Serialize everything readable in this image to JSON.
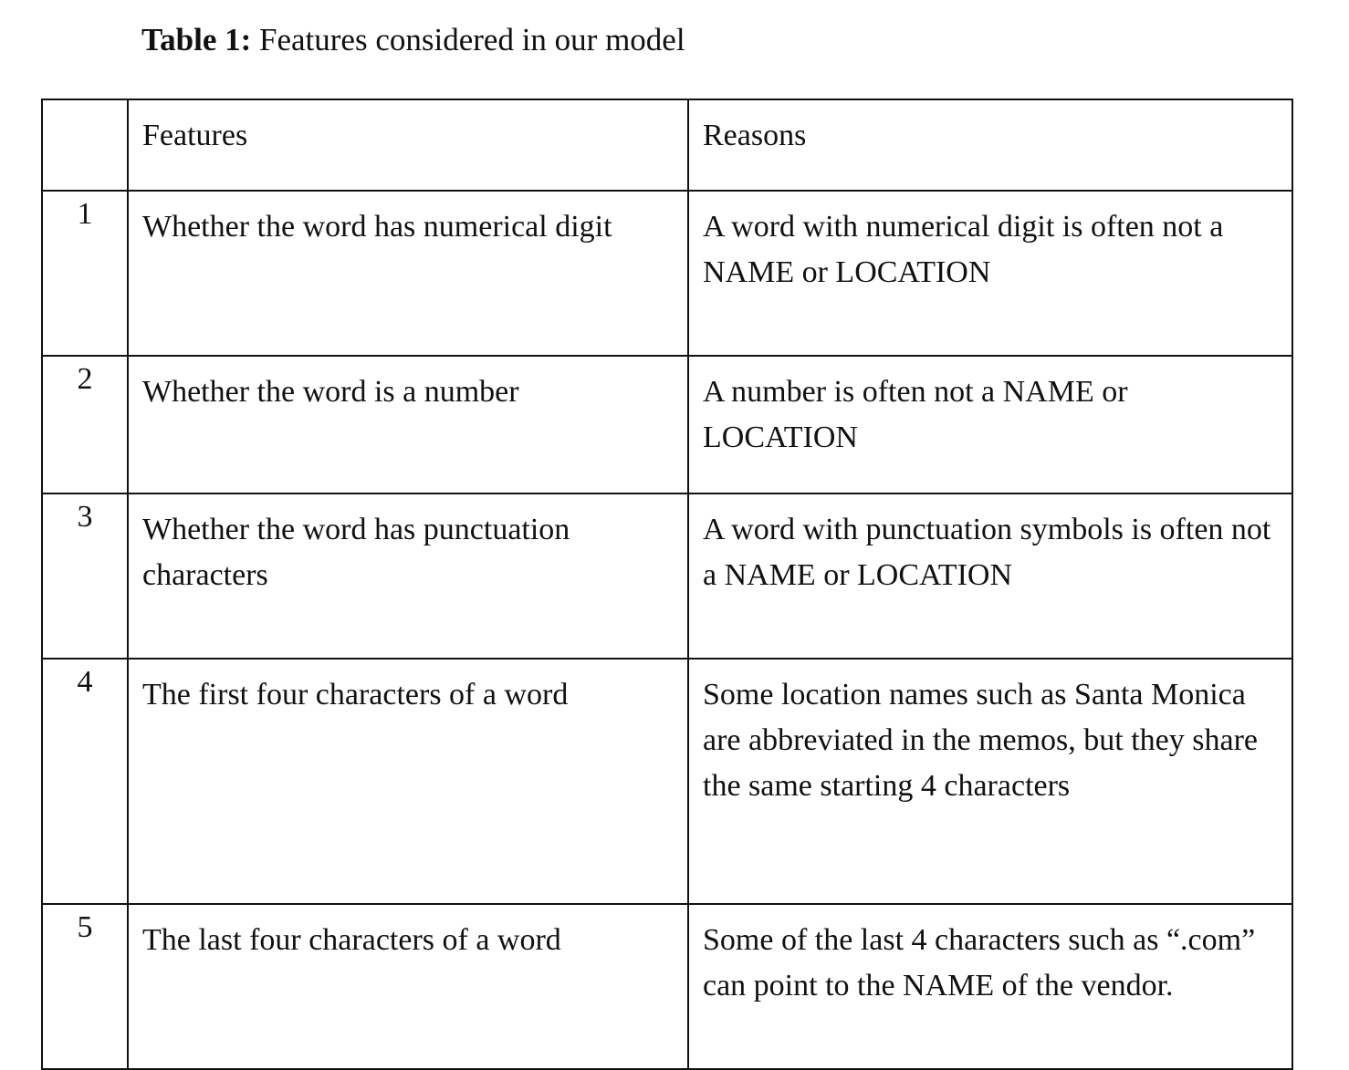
{
  "caption": {
    "label": "Table 1:",
    "text": " Features considered in our model"
  },
  "table": {
    "headers": {
      "index": "",
      "features": "Features",
      "reasons": "Reasons"
    },
    "rows": [
      {
        "index": "1",
        "feature": "Whether the word has numerical digit",
        "reason": "A word with numerical digit is often not a NAME or LOCATION"
      },
      {
        "index": "2",
        "feature": "Whether the word is a number",
        "reason": "A number is often not a NAME or LOCATION"
      },
      {
        "index": "3",
        "feature": "Whether the word has punctuation characters",
        "reason": "A word with punctuation symbols is often not a NAME or LOCATION"
      },
      {
        "index": "4",
        "feature": "The first four characters of a word",
        "reason": "Some location names such as Santa Monica are abbreviated in the memos, but they share the same starting 4 characters"
      },
      {
        "index": "5",
        "feature": "The last four characters of a word",
        "reason": "Some of the last 4 characters such as “.com” can point to the NAME of the vendor."
      }
    ]
  }
}
